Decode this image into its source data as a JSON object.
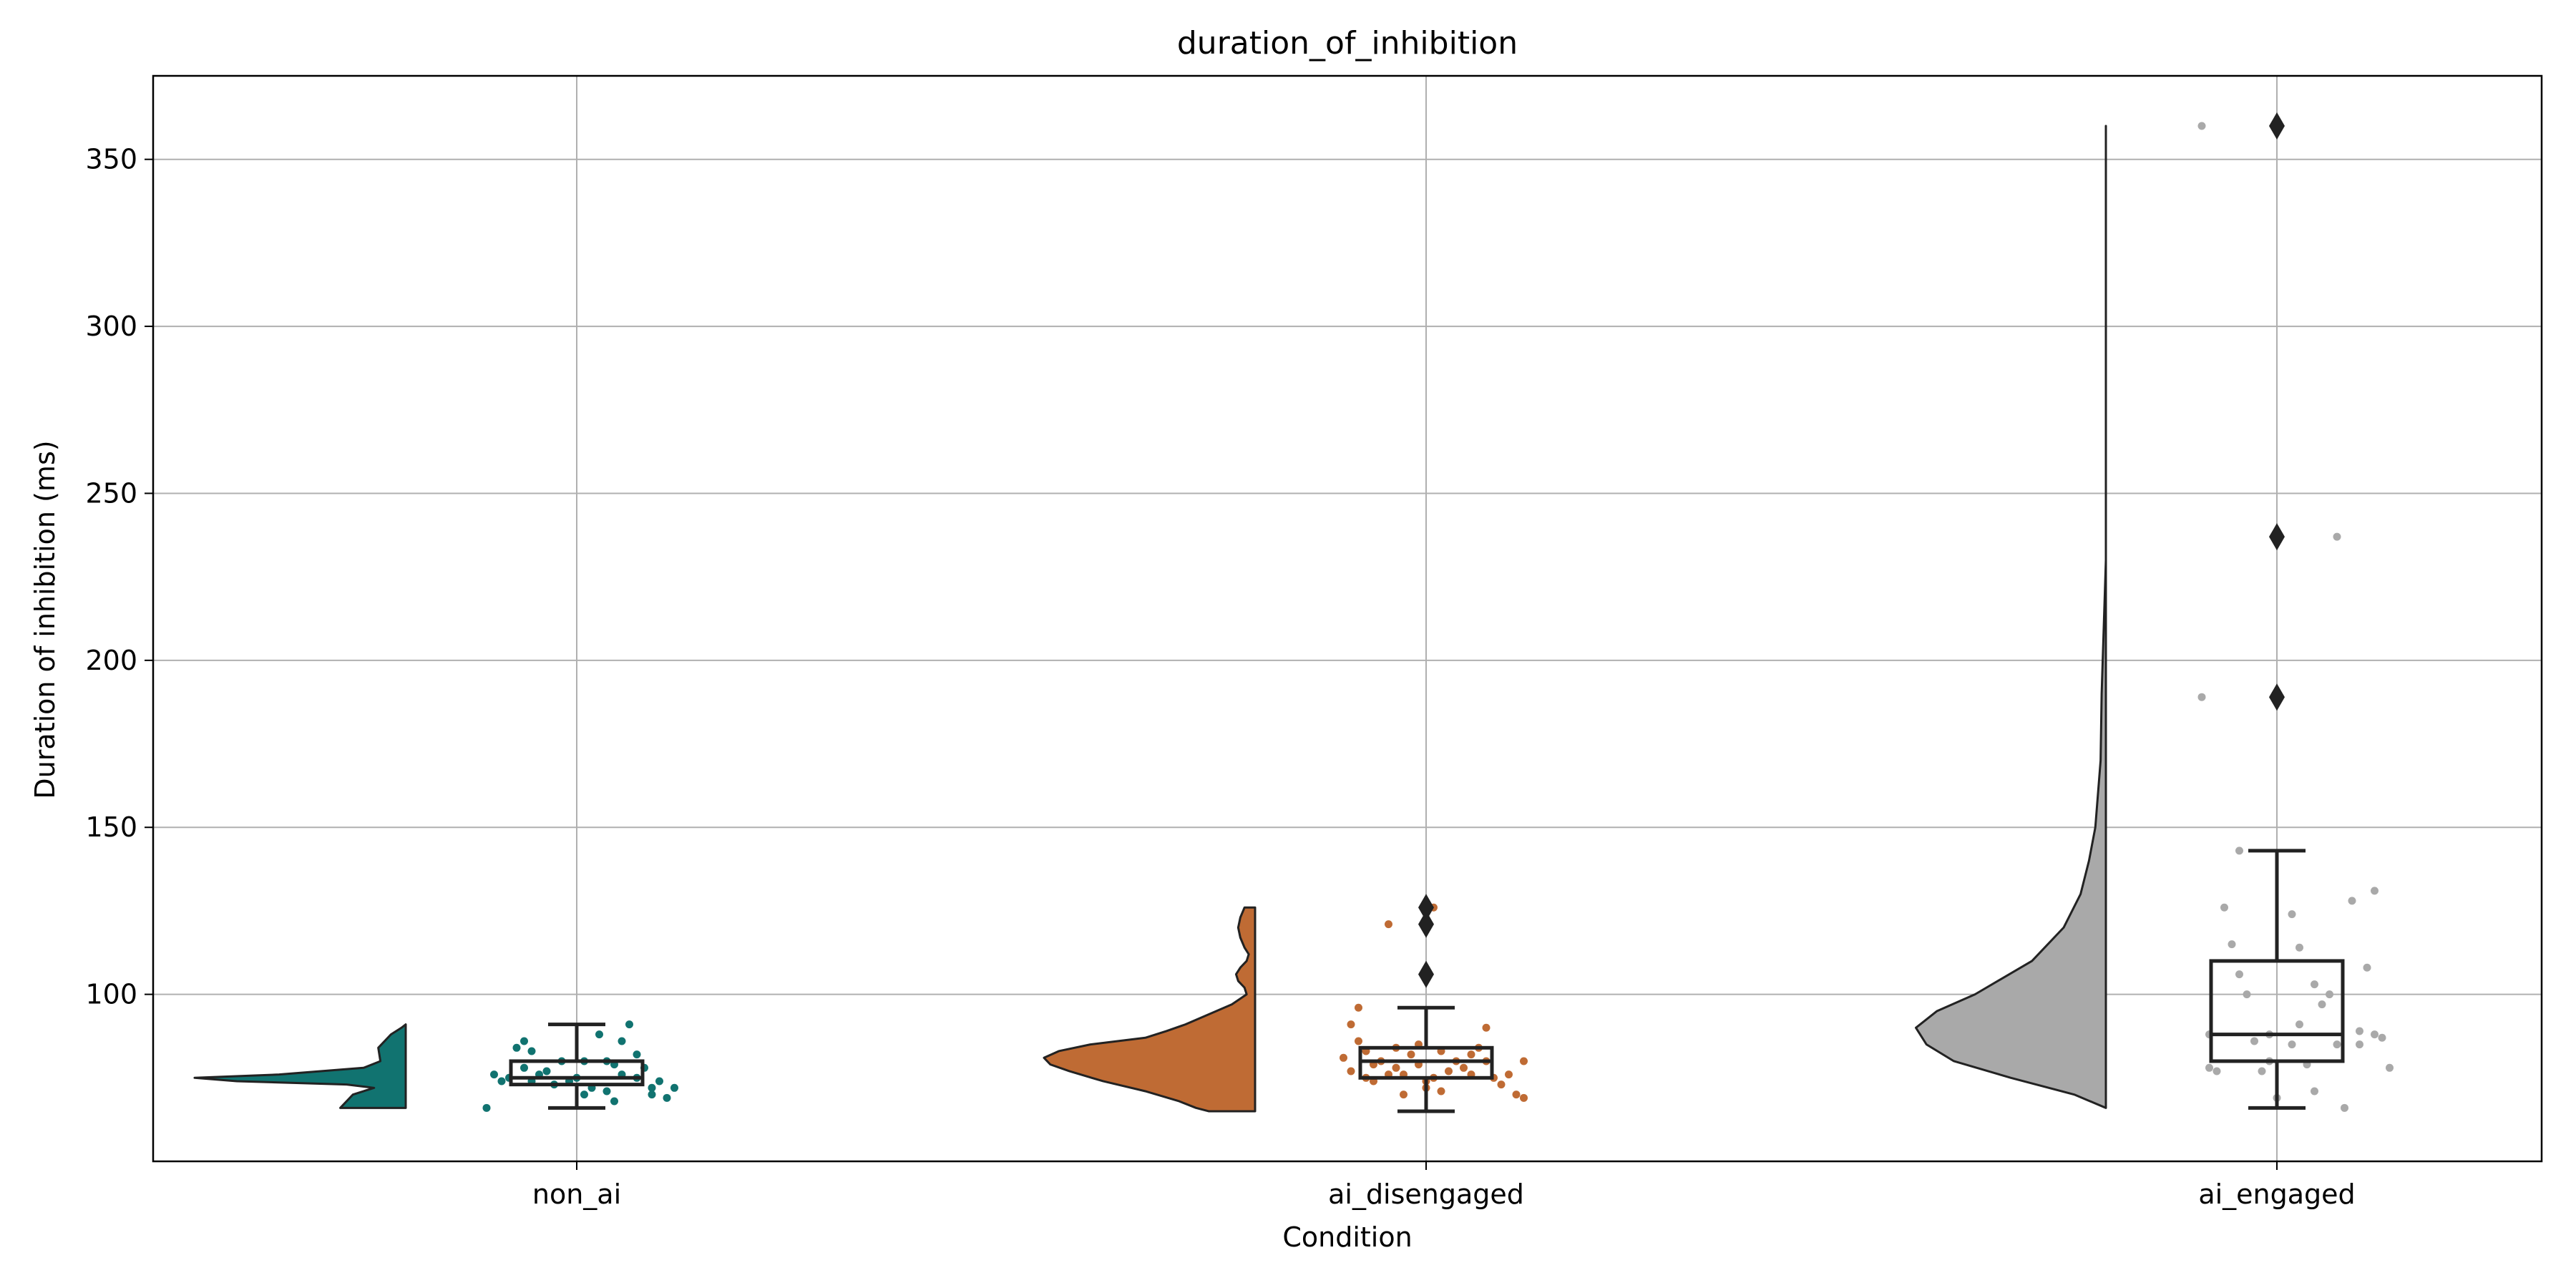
{
  "chart_data": {
    "type": "raincloud",
    "title": "duration_of_inhibition",
    "xlabel": "Condition",
    "ylabel": "Duration of inhibition (ms)",
    "categories": [
      "non_ai",
      "ai_disengaged",
      "ai_engaged"
    ],
    "ylim": [
      50,
      375
    ],
    "yticks": [
      100,
      150,
      200,
      250,
      300,
      350
    ],
    "grid": true,
    "series": [
      {
        "category": "non_ai",
        "color": "#117370",
        "box": {
          "whisker_low": 66,
          "q1": 73,
          "median": 75,
          "q3": 80,
          "whisker_high": 91
        },
        "outliers": [],
        "points": [
          [
            -0.12,
            66
          ],
          [
            -0.11,
            76
          ],
          [
            -0.1,
            74
          ],
          [
            -0.09,
            75
          ],
          [
            -0.08,
            84
          ],
          [
            -0.07,
            78
          ],
          [
            -0.07,
            86
          ],
          [
            -0.06,
            74
          ],
          [
            -0.06,
            83
          ],
          [
            -0.05,
            76
          ],
          [
            -0.04,
            77
          ],
          [
            -0.03,
            73
          ],
          [
            -0.02,
            80
          ],
          [
            -0.01,
            74
          ],
          [
            0.0,
            75
          ],
          [
            0.01,
            70
          ],
          [
            0.01,
            80
          ],
          [
            0.02,
            72
          ],
          [
            0.03,
            88
          ],
          [
            0.04,
            71
          ],
          [
            0.04,
            80
          ],
          [
            0.05,
            68
          ],
          [
            0.05,
            79
          ],
          [
            0.06,
            86
          ],
          [
            0.06,
            76
          ],
          [
            0.07,
            91
          ],
          [
            0.08,
            82
          ],
          [
            0.08,
            75
          ],
          [
            0.09,
            78
          ],
          [
            0.1,
            72
          ],
          [
            0.1,
            70
          ],
          [
            0.11,
            74
          ],
          [
            0.12,
            69
          ],
          [
            0.13,
            72
          ]
        ],
        "violin": {
          "y": [
            66,
            70,
            72,
            73,
            74,
            75,
            76,
            78,
            80,
            84,
            88,
            90,
            91
          ],
          "w": [
            0.31,
            0.25,
            0.15,
            0.28,
            0.8,
            1.0,
            0.6,
            0.2,
            0.12,
            0.13,
            0.07,
            0.02,
            0.0
          ]
        }
      },
      {
        "category": "ai_disengaged",
        "color": "#BF6B34",
        "box": {
          "whisker_low": 65,
          "q1": 75,
          "median": 80,
          "q3": 84,
          "whisker_high": 96
        },
        "outliers": [
          106,
          121,
          126
        ],
        "points": [
          [
            -0.11,
            81
          ],
          [
            -0.1,
            77
          ],
          [
            -0.1,
            91
          ],
          [
            -0.09,
            96
          ],
          [
            -0.09,
            86
          ],
          [
            -0.08,
            75
          ],
          [
            -0.08,
            83
          ],
          [
            -0.07,
            74
          ],
          [
            -0.07,
            79
          ],
          [
            -0.06,
            80
          ],
          [
            -0.05,
            76
          ],
          [
            -0.05,
            121
          ],
          [
            -0.04,
            78
          ],
          [
            -0.04,
            84
          ],
          [
            -0.03,
            70
          ],
          [
            -0.03,
            76
          ],
          [
            -0.02,
            82
          ],
          [
            -0.01,
            79
          ],
          [
            -0.01,
            85
          ],
          [
            0.0,
            72
          ],
          [
            0.0,
            74
          ],
          [
            0.01,
            75
          ],
          [
            0.01,
            126
          ],
          [
            0.02,
            71
          ],
          [
            0.02,
            83
          ],
          [
            0.03,
            77
          ],
          [
            0.04,
            80
          ],
          [
            0.05,
            78
          ],
          [
            0.06,
            82
          ],
          [
            0.06,
            76
          ],
          [
            0.07,
            84
          ],
          [
            0.08,
            80
          ],
          [
            0.08,
            90
          ],
          [
            0.09,
            75
          ],
          [
            0.1,
            73
          ],
          [
            0.11,
            76
          ],
          [
            0.12,
            70
          ],
          [
            0.13,
            80
          ],
          [
            0.13,
            69
          ]
        ],
        "violin": {
          "y": [
            65,
            66,
            68,
            71,
            74,
            77,
            79,
            81,
            83,
            85,
            87,
            89,
            91,
            94,
            97,
            100,
            102,
            104,
            106,
            108,
            110,
            112,
            114,
            117,
            120,
            123,
            126
          ],
          "w": [
            0.22,
            0.28,
            0.36,
            0.52,
            0.72,
            0.88,
            0.97,
            1.0,
            0.93,
            0.78,
            0.52,
            0.42,
            0.33,
            0.22,
            0.11,
            0.04,
            0.05,
            0.08,
            0.09,
            0.07,
            0.04,
            0.03,
            0.05,
            0.07,
            0.08,
            0.07,
            0.05
          ]
        }
      },
      {
        "category": "ai_engaged",
        "color": "#A9A9A9",
        "box": {
          "whisker_low": 66,
          "q1": 80,
          "median": 88,
          "q3": 110,
          "whisker_high": 143
        },
        "outliers": [
          189,
          237,
          360
        ],
        "points": [
          [
            -0.1,
            360
          ],
          [
            -0.1,
            189
          ],
          [
            -0.09,
            78
          ],
          [
            -0.09,
            88
          ],
          [
            -0.08,
            77
          ],
          [
            -0.07,
            126
          ],
          [
            -0.06,
            115
          ],
          [
            -0.05,
            106
          ],
          [
            -0.05,
            143
          ],
          [
            -0.04,
            100
          ],
          [
            -0.03,
            86
          ],
          [
            -0.02,
            77
          ],
          [
            -0.01,
            80
          ],
          [
            -0.01,
            88
          ],
          [
            0.0,
            69
          ],
          [
            0.02,
            85
          ],
          [
            0.02,
            124
          ],
          [
            0.03,
            91
          ],
          [
            0.03,
            114
          ],
          [
            0.04,
            79
          ],
          [
            0.05,
            71
          ],
          [
            0.05,
            103
          ],
          [
            0.06,
            97
          ],
          [
            0.07,
            100
          ],
          [
            0.08,
            85
          ],
          [
            0.08,
            237
          ],
          [
            0.09,
            66
          ],
          [
            0.1,
            128
          ],
          [
            0.11,
            89
          ],
          [
            0.11,
            85
          ],
          [
            0.12,
            108
          ],
          [
            0.13,
            131
          ],
          [
            0.13,
            88
          ],
          [
            0.14,
            87
          ],
          [
            0.15,
            78
          ]
        ],
        "violin": {
          "y": [
            66,
            70,
            75,
            80,
            85,
            90,
            95,
            100,
            110,
            120,
            130,
            140,
            150,
            170,
            190,
            210,
            230,
            250,
            270,
            290,
            320,
            350,
            360
          ],
          "w": [
            0.0,
            0.15,
            0.45,
            0.72,
            0.85,
            0.9,
            0.8,
            0.62,
            0.35,
            0.2,
            0.12,
            0.08,
            0.05,
            0.025,
            0.02,
            0.01,
            0.0,
            0.0,
            0.0,
            0.0,
            0.0,
            0.0,
            0.0
          ]
        }
      }
    ]
  }
}
